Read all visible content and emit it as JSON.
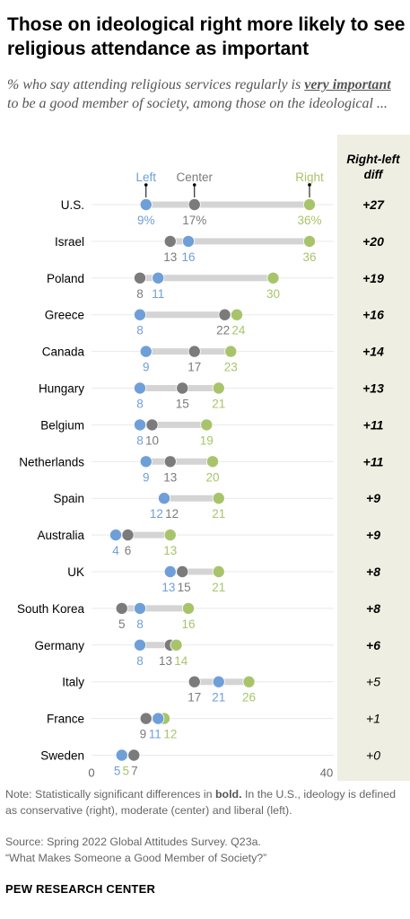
{
  "title": "Those on ideological right more likely to see religious attendance as important",
  "subtitle": {
    "before": "% who say attending religious services regularly is ",
    "emphasis": "very important",
    "after": " to be a good member of society, among those on the ideological ..."
  },
  "chart_data": {
    "type": "dot-plot",
    "series": [
      {
        "name": "Left",
        "color": "#6f9fd8"
      },
      {
        "name": "Center",
        "color": "#7b7b7b"
      },
      {
        "name": "Right",
        "color": "#a8c46b"
      }
    ],
    "diff_header": "Right-left diff",
    "xlim": [
      0,
      40
    ],
    "x_ticks": [
      "0",
      "40"
    ],
    "rows": [
      {
        "country": "U.S.",
        "left": 9,
        "center": 17,
        "right": 36,
        "left_label": "9%",
        "center_label": "17%",
        "right_label": "36%",
        "diff": "+27",
        "significant": true
      },
      {
        "country": "Israel",
        "left": 16,
        "center": 13,
        "right": 36,
        "left_label": "16",
        "center_label": "13",
        "right_label": "36",
        "diff": "+20",
        "significant": true
      },
      {
        "country": "Poland",
        "left": 11,
        "center": 8,
        "right": 30,
        "left_label": "11",
        "center_label": "8",
        "right_label": "30",
        "diff": "+19",
        "significant": true
      },
      {
        "country": "Greece",
        "left": 8,
        "center": 22,
        "right": 24,
        "left_label": "8",
        "center_label": "22",
        "right_label": "24",
        "diff": "+16",
        "significant": true
      },
      {
        "country": "Canada",
        "left": 9,
        "center": 17,
        "right": 23,
        "left_label": "9",
        "center_label": "17",
        "right_label": "23",
        "diff": "+14",
        "significant": true
      },
      {
        "country": "Hungary",
        "left": 8,
        "center": 15,
        "right": 21,
        "left_label": "8",
        "center_label": "15",
        "right_label": "21",
        "diff": "+13",
        "significant": true
      },
      {
        "country": "Belgium",
        "left": 8,
        "center": 10,
        "right": 19,
        "left_label": "8",
        "center_label": "10",
        "right_label": "19",
        "diff": "+11",
        "significant": true
      },
      {
        "country": "Netherlands",
        "left": 9,
        "center": 13,
        "right": 20,
        "left_label": "9",
        "center_label": "13",
        "right_label": "20",
        "diff": "+11",
        "significant": true
      },
      {
        "country": "Spain",
        "left": 12,
        "center": 12,
        "right": 21,
        "left_label": "12",
        "center_label": "12",
        "right_label": "21",
        "diff": "+9",
        "significant": true
      },
      {
        "country": "Australia",
        "left": 4,
        "center": 6,
        "right": 13,
        "left_label": "4",
        "center_label": "6",
        "right_label": "13",
        "diff": "+9",
        "significant": true
      },
      {
        "country": "UK",
        "left": 13,
        "center": 15,
        "right": 21,
        "left_label": "13",
        "center_label": "15",
        "right_label": "21",
        "diff": "+8",
        "significant": true
      },
      {
        "country": "South Korea",
        "left": 8,
        "center": 5,
        "right": 16,
        "left_label": "8",
        "center_label": "5",
        "right_label": "16",
        "diff": "+8",
        "significant": true
      },
      {
        "country": "Germany",
        "left": 8,
        "center": 13,
        "right": 14,
        "left_label": "8",
        "center_label": "13",
        "right_label": "14",
        "diff": "+6",
        "significant": true
      },
      {
        "country": "Italy",
        "left": 21,
        "center": 17,
        "right": 26,
        "left_label": "21",
        "center_label": "17",
        "right_label": "26",
        "diff": "+5",
        "significant": false
      },
      {
        "country": "France",
        "left": 11,
        "center": 9,
        "right": 12,
        "left_label": "11",
        "center_label": "9",
        "right_label": "12",
        "diff": "+1",
        "significant": false
      },
      {
        "country": "Sweden",
        "left": 5,
        "center": 7,
        "right": 5,
        "left_label": "5",
        "center_label": "7",
        "right_label": "5",
        "diff": "+0",
        "significant": false
      }
    ]
  },
  "note": {
    "prefix": "Note: Statistically significant differences in ",
    "bold": "bold.",
    "rest": " In the U.S., ideology is defined as conservative (right), moderate (center) and liberal (left)."
  },
  "source": {
    "line1": "Source: Spring 2022 Global Attitudes Survey. Q23a.",
    "line2": "“What Makes Someone a Good Member of Society?”"
  },
  "brand": "PEW RESEARCH CENTER",
  "colors": {
    "left": "#6f9fd8",
    "center": "#7b7b7b",
    "right": "#a8c46b",
    "bar": "#d4d4d4",
    "diff_panel": "#eeeee2"
  }
}
